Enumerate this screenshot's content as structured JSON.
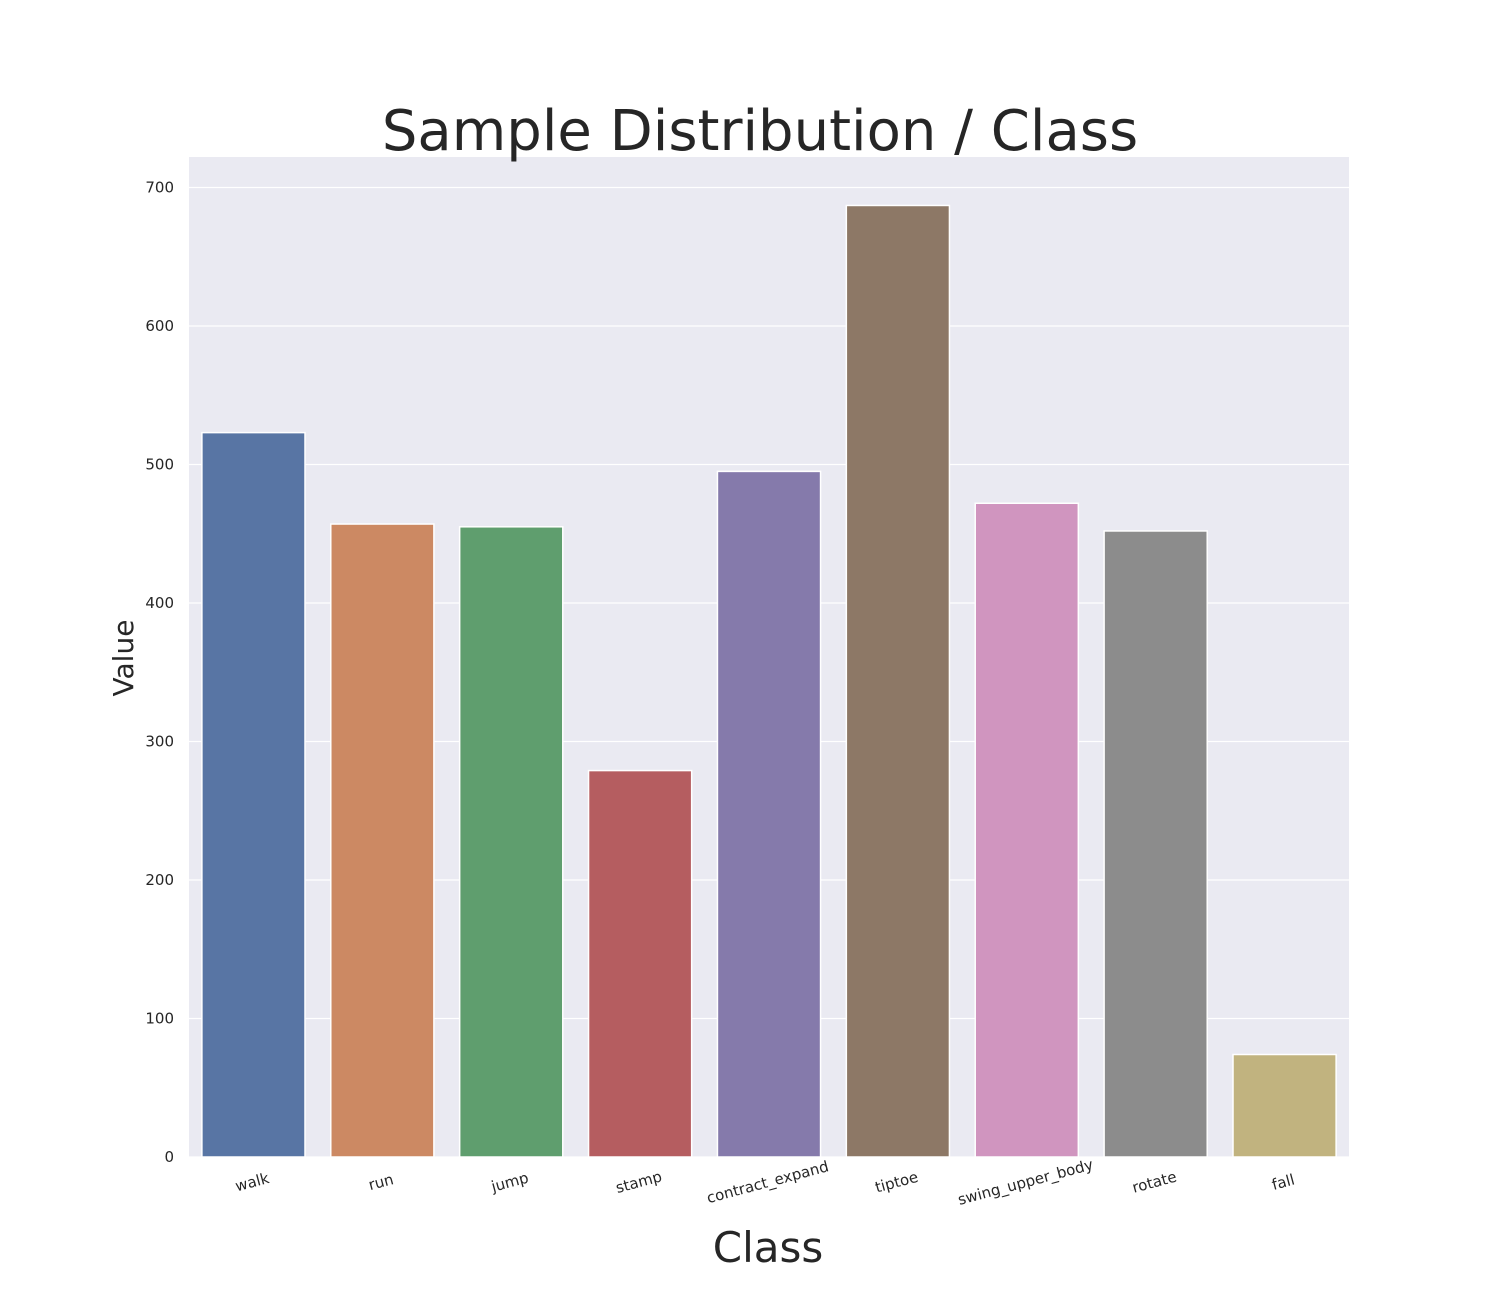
{
  "chart_data": {
    "type": "bar",
    "title": "Sample Distribution / Class",
    "xlabel": "Class",
    "ylabel": "Value",
    "categories": [
      "walk",
      "run",
      "jump",
      "stamp",
      "contract_expand",
      "tiptoe",
      "swing_upper_body",
      "rotate",
      "fall"
    ],
    "values": [
      523,
      457,
      455,
      279,
      495,
      687,
      472,
      452,
      74
    ],
    "ylim": [
      0,
      722
    ],
    "yticks": [
      0,
      100,
      200,
      300,
      400,
      500,
      600,
      700
    ],
    "grid": true,
    "colors": [
      "#5875a4",
      "#cc8963",
      "#5f9e6e",
      "#b55d60",
      "#857aab",
      "#8d7866",
      "#d095bf",
      "#8c8c8c",
      "#c1b37f"
    ],
    "background": "#eaeaf2",
    "gridline_color": "#ffffff"
  }
}
